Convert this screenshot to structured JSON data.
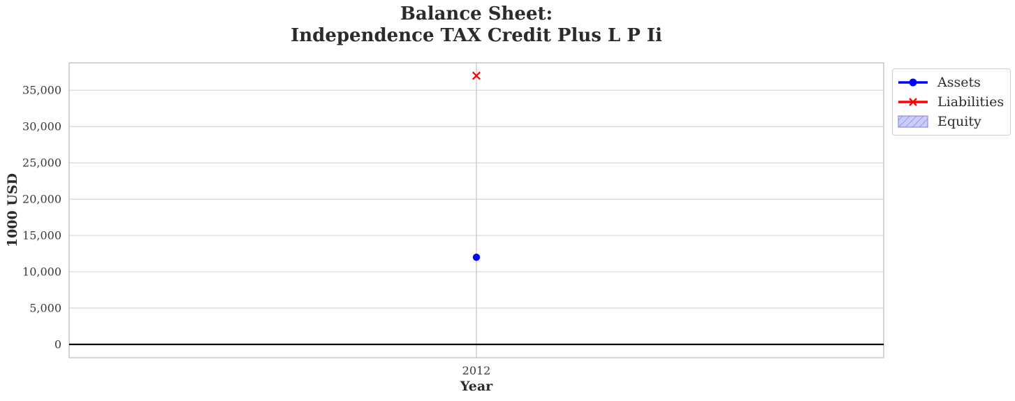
{
  "title": "Balance Sheet:\nIndependence TAX Credit Plus L P Ii",
  "axes": {
    "ylabel": "1000 USD",
    "xlabel": "Year"
  },
  "legend": {
    "position": "outside-upper-right",
    "entries": [
      {
        "label": "Assets",
        "marker": "line-circle",
        "color": "#0000ff"
      },
      {
        "label": "Liabilities",
        "marker": "line-x",
        "color": "#ff0000"
      },
      {
        "label": "Equity",
        "marker": "hatch-patch",
        "color": "#8d8de0",
        "fill": "#ccccfa"
      }
    ]
  },
  "chart_data": {
    "type": "line",
    "x": [
      2012
    ],
    "categories": [
      "2012"
    ],
    "series": [
      {
        "name": "Assets",
        "values": [
          12000
        ],
        "color": "#0000ff",
        "marker": "circle"
      },
      {
        "name": "Liabilities",
        "values": [
          37000
        ],
        "color": "#ff0000",
        "marker": "x"
      },
      {
        "name": "Equity",
        "values": [
          null
        ],
        "color": "#ccccfa",
        "marker": "hatch-area-not-visible"
      }
    ],
    "title": "Balance Sheet:\nIndependence TAX Credit Plus L P Ii",
    "xlabel": "Year",
    "ylabel": "1000 USD",
    "ylim": [
      -1830,
      38770
    ],
    "yticks": [
      0,
      5000,
      10000,
      15000,
      20000,
      25000,
      30000,
      35000
    ],
    "ytick_labels": [
      "0",
      "5,000",
      "10,000",
      "15,000",
      "20,000",
      "25,000",
      "30,000",
      "35,000"
    ],
    "grid": true,
    "zero_line": true,
    "legend_position": "outside upper right"
  },
  "colors": {
    "background": "#ffffff",
    "grid": "#d6d6d6",
    "vertical_grid": "#c9c9de",
    "spine": "#c3c3c3",
    "zero_line": "#000000",
    "title_text": "#2b2b2b",
    "tick_text": "#3a3a3a"
  }
}
